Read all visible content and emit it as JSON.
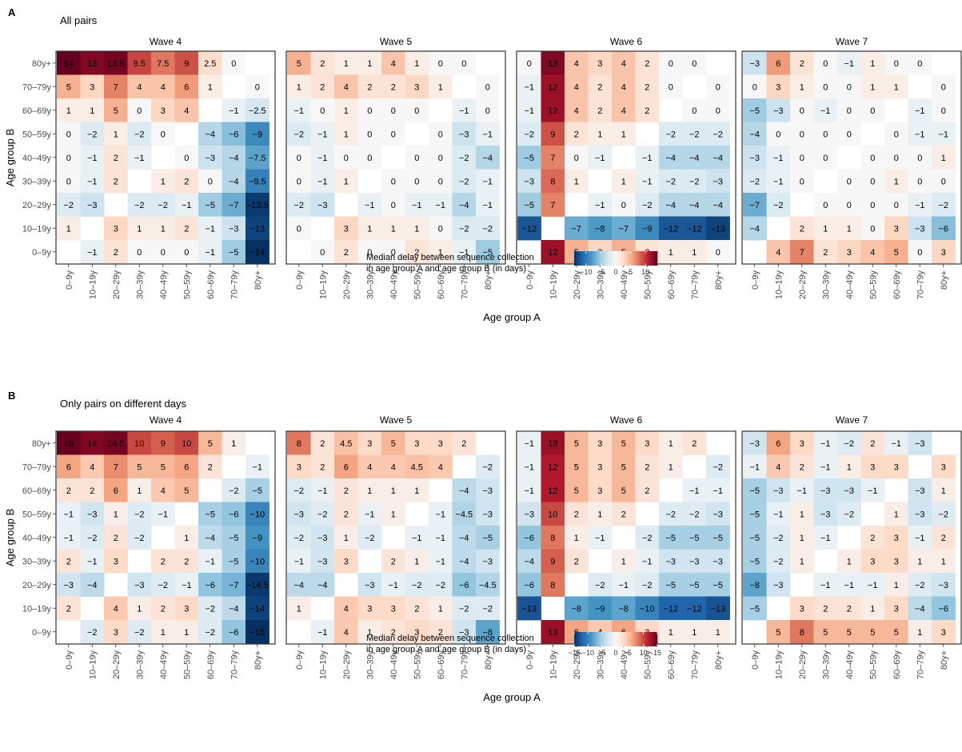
{
  "chart_data": [
    {
      "type": "heatmap",
      "panel_letter": "A",
      "subtitle": "All pairs",
      "xlabel": "Age group A",
      "ylabel": "Age group B",
      "x_categories": [
        "0–9y",
        "10–19y",
        "20–29y",
        "30–39y",
        "40–49y",
        "50–59y",
        "60–69y",
        "70–79y",
        "80y+"
      ],
      "y_categories": [
        "0–9y",
        "10–19y",
        "20–29y",
        "30–39y",
        "40–49y",
        "50–59y",
        "60–69y",
        "70–79y",
        "80y+"
      ],
      "legend": {
        "title_line1": "Median delay between sequence collection",
        "title_line2": "in age group A and age group B (in days)",
        "range": [
          -14,
          14
        ],
        "ticks": [
          -10,
          -5,
          0,
          5,
          10
        ],
        "tick_labels": [
          "−10",
          "−5",
          "0",
          "5",
          "10"
        ],
        "placement": "bottom-center"
      },
      "colors": {
        "negative": "#053061",
        "neutral": "#f7f7f7",
        "positive": "#67001f"
      },
      "facets": [
        {
          "title": "Wave 4",
          "rows_top_to_bottom": [
            [
              14,
              13,
              13.5,
              9.5,
              7.5,
              9,
              2.5,
              0,
              null
            ],
            [
              5,
              3,
              7,
              4,
              4,
              6,
              1,
              null,
              0
            ],
            [
              1,
              1,
              5,
              0,
              3,
              4,
              null,
              -1,
              -2.5
            ],
            [
              0,
              -2,
              1,
              -2,
              0,
              null,
              -4,
              -6,
              -9
            ],
            [
              0,
              -1,
              2,
              -1,
              null,
              0,
              -3,
              -4,
              -7.5
            ],
            [
              0,
              -1,
              2,
              null,
              1,
              2,
              0,
              -4,
              -9.5
            ],
            [
              -2,
              -3,
              null,
              -2,
              -2,
              -1,
              -5,
              -7,
              -13.5
            ],
            [
              1,
              null,
              3,
              1,
              1,
              2,
              -1,
              -3,
              -13
            ],
            [
              null,
              -1,
              2,
              0,
              0,
              0,
              -1,
              -5,
              -14
            ]
          ]
        },
        {
          "title": "Wave 5",
          "rows_top_to_bottom": [
            [
              5,
              2,
              1,
              1,
              4,
              1,
              0,
              0,
              null
            ],
            [
              1,
              2,
              4,
              2,
              2,
              3,
              1,
              null,
              0
            ],
            [
              -1,
              0,
              1,
              0,
              0,
              0,
              null,
              -1,
              0
            ],
            [
              -2,
              -1,
              1,
              0,
              0,
              null,
              0,
              -3,
              -1
            ],
            [
              0,
              -1,
              0,
              0,
              null,
              0,
              0,
              -2,
              -4
            ],
            [
              0,
              -1,
              1,
              null,
              0,
              0,
              0,
              -2,
              -1
            ],
            [
              -2,
              -3,
              null,
              -1,
              0,
              -1,
              -1,
              -4,
              -1
            ],
            [
              0,
              null,
              3,
              1,
              1,
              1,
              0,
              -2,
              -2
            ],
            [
              null,
              0,
              2,
              0,
              0,
              2,
              1,
              -1,
              -5
            ]
          ]
        },
        {
          "title": "Wave 6",
          "rows_top_to_bottom": [
            [
              0,
              13,
              4,
              3,
              4,
              2,
              0,
              0,
              null
            ],
            [
              -1,
              12,
              4,
              2,
              4,
              2,
              0,
              null,
              0
            ],
            [
              -1,
              12,
              4,
              2,
              4,
              2,
              null,
              0,
              0
            ],
            [
              -2,
              9,
              2,
              1,
              1,
              null,
              -2,
              -2,
              -2
            ],
            [
              -5,
              7,
              0,
              -1,
              null,
              -1,
              -4,
              -4,
              -4
            ],
            [
              -3,
              8,
              1,
              null,
              1,
              -1,
              -2,
              -2,
              -3
            ],
            [
              -5,
              7,
              null,
              -1,
              0,
              -2,
              -4,
              -4,
              -4
            ],
            [
              -12,
              null,
              -7,
              -8,
              -7,
              -9,
              -12,
              -12,
              -13
            ],
            [
              null,
              12,
              5,
              3,
              5,
              2,
              1,
              1,
              0
            ]
          ]
        },
        {
          "title": "Wave 7",
          "rows_top_to_bottom": [
            [
              -3,
              6,
              2,
              0,
              -1,
              1,
              0,
              0,
              null
            ],
            [
              0,
              3,
              1,
              0,
              0,
              1,
              1,
              null,
              0
            ],
            [
              -5,
              -3,
              0,
              -1,
              0,
              0,
              null,
              -1,
              0
            ],
            [
              -4,
              0,
              0,
              0,
              0,
              null,
              0,
              -1,
              -1
            ],
            [
              -3,
              -1,
              0,
              0,
              null,
              0,
              0,
              0,
              1
            ],
            [
              -2,
              -1,
              0,
              null,
              0,
              0,
              1,
              0,
              0
            ],
            [
              -7,
              -2,
              null,
              0,
              0,
              0,
              0,
              -1,
              -2
            ],
            [
              -4,
              null,
              2,
              1,
              1,
              0,
              3,
              -3,
              -6
            ],
            [
              null,
              4,
              7,
              2,
              3,
              4,
              5,
              0,
              3
            ]
          ]
        }
      ]
    },
    {
      "type": "heatmap",
      "panel_letter": "B",
      "subtitle": "Only pairs on different days",
      "xlabel": "Age group A",
      "ylabel": "Age group B",
      "x_categories": [
        "0–9y",
        "10–19y",
        "20–29y",
        "30–39y",
        "40–49y",
        "50–59y",
        "60–69y",
        "70–79y",
        "80y+"
      ],
      "y_categories": [
        "0–9y",
        "10–19y",
        "20–29y",
        "30–39y",
        "40–49y",
        "50–59y",
        "60–69y",
        "70–79y",
        "80y+"
      ],
      "legend": {
        "title_line1": "Median delay between sequence collection",
        "title_line2": "in age group A and age group B (in days)",
        "range": [
          -15,
          15
        ],
        "ticks": [
          -15,
          -10,
          -5,
          0,
          5,
          10,
          15
        ],
        "tick_labels": [
          "−15",
          "−10",
          "−5",
          "0",
          "5",
          "10",
          "15"
        ],
        "placement": "bottom-center"
      },
      "colors": {
        "negative": "#053061",
        "neutral": "#f7f7f7",
        "positive": "#67001f"
      },
      "facets": [
        {
          "title": "Wave 4",
          "rows_top_to_bottom": [
            [
              15,
              14,
              14.5,
              10,
              9,
              10,
              5,
              1,
              null
            ],
            [
              6,
              4,
              7,
              5,
              5,
              6,
              2,
              null,
              -1
            ],
            [
              2,
              2,
              6,
              1,
              4,
              5,
              null,
              -2,
              -5
            ],
            [
              -1,
              -3,
              1,
              -2,
              -1,
              null,
              -5,
              -6,
              -10
            ],
            [
              -1,
              -2,
              2,
              -2,
              null,
              1,
              -4,
              -5,
              -9
            ],
            [
              2,
              -1,
              3,
              null,
              2,
              2,
              -1,
              -5,
              -10
            ],
            [
              -3,
              -4,
              null,
              -3,
              -2,
              -1,
              -6,
              -7,
              -14.5
            ],
            [
              2,
              null,
              4,
              1,
              2,
              3,
              -2,
              -4,
              -14
            ],
            [
              null,
              -2,
              3,
              -2,
              1,
              1,
              -2,
              -6,
              -15
            ]
          ]
        },
        {
          "title": "Wave 5",
          "rows_top_to_bottom": [
            [
              8,
              2,
              4.5,
              3,
              5,
              3,
              3,
              2,
              null
            ],
            [
              3,
              2,
              6,
              4,
              4,
              4.5,
              4,
              null,
              -2
            ],
            [
              -2,
              -1,
              2,
              1,
              1,
              1,
              null,
              -4,
              -3
            ],
            [
              -3,
              -2,
              2,
              -1,
              1,
              null,
              -1,
              -4.5,
              -3
            ],
            [
              -2,
              -3,
              1,
              -2,
              null,
              -1,
              -1,
              -4,
              -5
            ],
            [
              -1,
              -3,
              3,
              null,
              2,
              1,
              -1,
              -4,
              -3
            ],
            [
              -4,
              -4,
              null,
              -3,
              -1,
              -2,
              -2,
              -6,
              -4.5
            ],
            [
              1,
              null,
              4,
              3,
              3,
              2,
              1,
              -2,
              -2
            ],
            [
              null,
              -1,
              4,
              1,
              2,
              3,
              2,
              -3,
              -8
            ]
          ]
        },
        {
          "title": "Wave 6",
          "rows_top_to_bottom": [
            [
              -1,
              13,
              5,
              3,
              5,
              3,
              1,
              2,
              null
            ],
            [
              -1,
              12,
              5,
              3,
              5,
              2,
              1,
              null,
              -2
            ],
            [
              -1,
              12,
              5,
              3,
              5,
              2,
              null,
              -1,
              -1
            ],
            [
              -3,
              10,
              2,
              1,
              2,
              null,
              -2,
              -2,
              -3
            ],
            [
              -6,
              8,
              1,
              -1,
              null,
              -2,
              -5,
              -5,
              -5
            ],
            [
              -4,
              9,
              2,
              null,
              1,
              -1,
              -3,
              -3,
              -3
            ],
            [
              -6,
              8,
              null,
              -2,
              -1,
              -2,
              -5,
              -5,
              -5
            ],
            [
              -13,
              null,
              -8,
              -9,
              -8,
              -10,
              -12,
              -12,
              -13
            ],
            [
              null,
              13,
              6,
              4,
              6,
              3,
              1,
              1,
              1
            ]
          ]
        },
        {
          "title": "Wave 7",
          "rows_top_to_bottom": [
            [
              -3,
              6,
              3,
              -1,
              -2,
              2,
              -1,
              -3,
              null
            ],
            [
              -1,
              4,
              2,
              -1,
              1,
              3,
              3,
              null,
              3
            ],
            [
              -5,
              -3,
              -1,
              -3,
              -3,
              -1,
              null,
              -3,
              1
            ],
            [
              -5,
              -1,
              1,
              -3,
              -2,
              null,
              1,
              -3,
              -2
            ],
            [
              -5,
              -2,
              1,
              -1,
              null,
              2,
              3,
              -1,
              2
            ],
            [
              -5,
              -2,
              1,
              null,
              1,
              3,
              3,
              1,
              1
            ],
            [
              -8,
              -3,
              null,
              -1,
              -1,
              -1,
              1,
              -2,
              -3
            ],
            [
              -5,
              null,
              3,
              2,
              2,
              1,
              3,
              -4,
              -6
            ],
            [
              null,
              5,
              8,
              5,
              5,
              5,
              5,
              1,
              3
            ]
          ]
        }
      ]
    }
  ]
}
